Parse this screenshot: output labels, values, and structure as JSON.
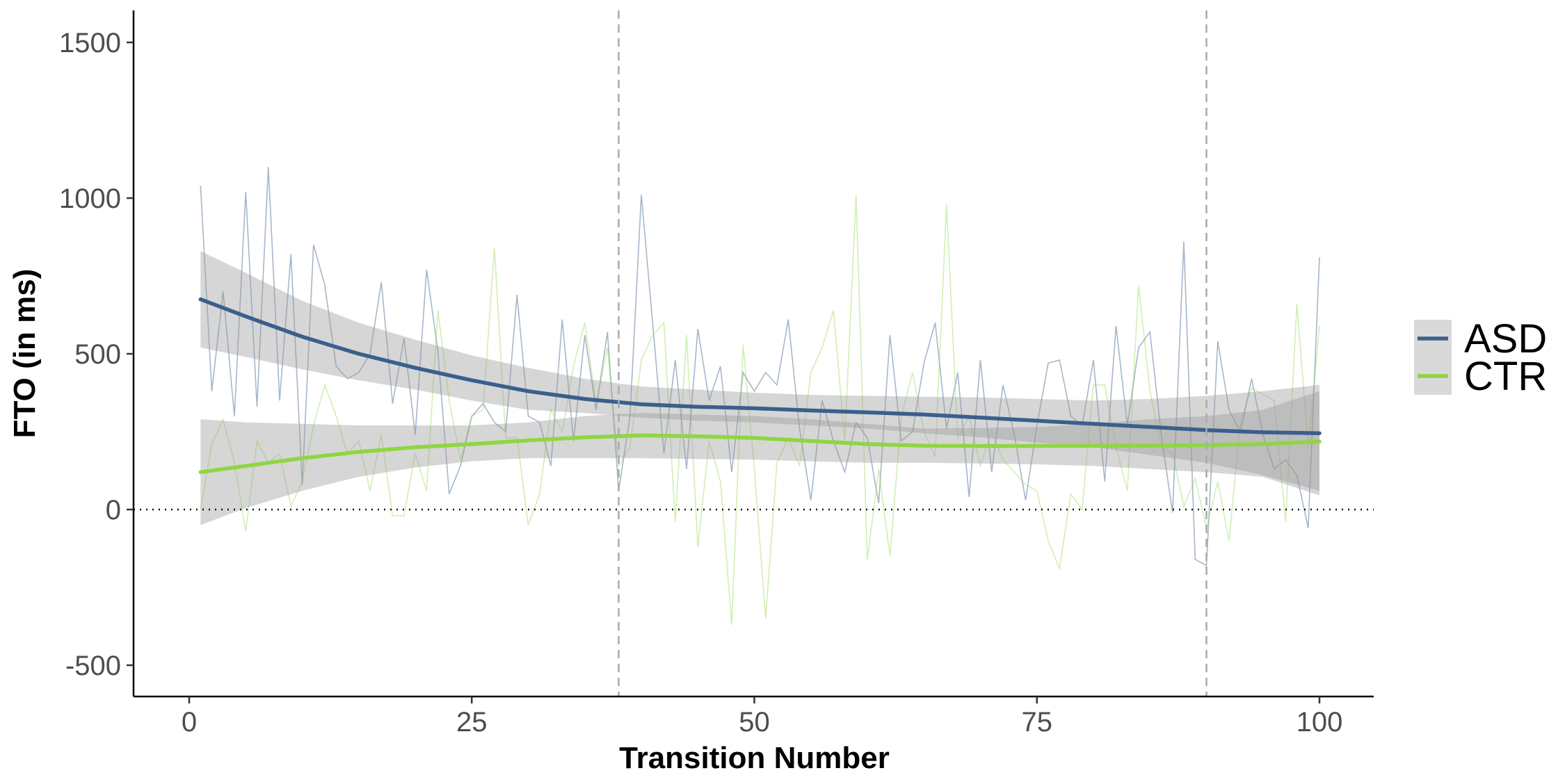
{
  "chart_data": {
    "type": "line",
    "title": "",
    "xlabel": "Transition Number",
    "ylabel": "FTO (in ms)",
    "xlim": [
      -5,
      105
    ],
    "ylim": [
      -590,
      1600
    ],
    "x_ticks": [
      0,
      25,
      50,
      75,
      100
    ],
    "y_ticks": [
      -500,
      0,
      500,
      1000,
      1500
    ],
    "x_tick_labels": [
      "0",
      "25",
      "50",
      "75",
      "100"
    ],
    "y_tick_labels": [
      "-500",
      "0",
      "500",
      "1000",
      "1500"
    ],
    "grid": false,
    "legend_position": "right",
    "reference_lines": {
      "horizontal_y": 0,
      "vertical_x": [
        38,
        90
      ]
    },
    "series": [
      {
        "name": "ASD",
        "color": "#3a5f8c",
        "raw": {
          "x": [
            1,
            2,
            3,
            4,
            5,
            6,
            7,
            8,
            9,
            10,
            11,
            12,
            13,
            14,
            15,
            16,
            17,
            18,
            19,
            20,
            21,
            22,
            23,
            24,
            25,
            26,
            27,
            28,
            29,
            30,
            31,
            32,
            33,
            34,
            35,
            36,
            37,
            38,
            39,
            40,
            41,
            42,
            43,
            44,
            45,
            46,
            47,
            48,
            49,
            50,
            51,
            52,
            53,
            54,
            55,
            56,
            57,
            58,
            59,
            60,
            61,
            62,
            63,
            64,
            65,
            66,
            67,
            68,
            69,
            70,
            71,
            72,
            73,
            74,
            75,
            76,
            77,
            78,
            79,
            80,
            81,
            82,
            83,
            84,
            85,
            86,
            87,
            88,
            89,
            90,
            91,
            92,
            93,
            94,
            95,
            96,
            97,
            98,
            99,
            100
          ],
          "y": [
            1040,
            380,
            700,
            300,
            1020,
            330,
            1100,
            350,
            820,
            80,
            850,
            720,
            460,
            420,
            440,
            500,
            730,
            340,
            550,
            240,
            770,
            510,
            50,
            140,
            300,
            340,
            280,
            250,
            690,
            300,
            280,
            140,
            610,
            220,
            560,
            320,
            570,
            60,
            300,
            1010,
            600,
            180,
            480,
            130,
            580,
            350,
            460,
            120,
            440,
            380,
            440,
            400,
            610,
            260,
            30,
            350,
            220,
            120,
            280,
            230,
            20,
            560,
            220,
            250,
            470,
            600,
            260,
            440,
            40,
            480,
            120,
            400,
            240,
            30,
            270,
            470,
            480,
            300,
            270,
            480,
            90,
            590,
            270,
            520,
            570,
            240,
            -10,
            860,
            -160,
            -180,
            540,
            320,
            250,
            420,
            240,
            130,
            160,
            110,
            -60,
            810
          ]
        },
        "smooth": {
          "x": [
            1,
            5,
            10,
            15,
            20,
            25,
            30,
            35,
            40,
            45,
            50,
            55,
            60,
            65,
            70,
            75,
            80,
            85,
            90,
            95,
            100
          ],
          "y": [
            675,
            620,
            555,
            500,
            455,
            415,
            380,
            355,
            338,
            330,
            325,
            318,
            312,
            305,
            295,
            285,
            275,
            265,
            255,
            248,
            245
          ]
        },
        "ci_lower": [
          520,
          490,
          450,
          415,
          385,
          350,
          320,
          310,
          295,
          285,
          280,
          270,
          260,
          245,
          232,
          215,
          200,
          175,
          150,
          110,
          60
        ],
        "ci_upper": [
          830,
          760,
          670,
          600,
          545,
          495,
          455,
          420,
          395,
          385,
          375,
          368,
          365,
          362,
          360,
          355,
          350,
          355,
          365,
          380,
          400
        ]
      },
      {
        "name": "CTR",
        "color": "#8fd642",
        "raw": {
          "x": [
            1,
            2,
            3,
            4,
            5,
            6,
            7,
            8,
            9,
            10,
            11,
            12,
            13,
            14,
            15,
            16,
            17,
            18,
            19,
            20,
            21,
            22,
            23,
            24,
            25,
            26,
            27,
            28,
            29,
            30,
            31,
            32,
            33,
            34,
            35,
            36,
            37,
            38,
            39,
            40,
            41,
            42,
            43,
            44,
            45,
            46,
            47,
            48,
            49,
            50,
            51,
            52,
            53,
            54,
            55,
            56,
            57,
            58,
            59,
            60,
            61,
            62,
            63,
            64,
            65,
            66,
            67,
            68,
            69,
            70,
            71,
            72,
            73,
            74,
            75,
            76,
            77,
            78,
            79,
            80,
            81,
            82,
            83,
            84,
            85,
            86,
            87,
            88,
            89,
            90,
            91,
            92,
            93,
            94,
            95,
            96,
            97,
            98,
            99,
            100
          ],
          "y": [
            0,
            210,
            290,
            150,
            -70,
            220,
            150,
            180,
            10,
            90,
            270,
            400,
            300,
            180,
            220,
            60,
            240,
            -20,
            -20,
            180,
            60,
            640,
            350,
            160,
            300,
            320,
            840,
            230,
            230,
            -50,
            50,
            320,
            250,
            460,
            600,
            340,
            520,
            140,
            200,
            480,
            560,
            600,
            -40,
            560,
            -120,
            220,
            90,
            -370,
            530,
            130,
            -350,
            150,
            230,
            140,
            440,
            520,
            640,
            220,
            1010,
            -160,
            130,
            -150,
            300,
            440,
            250,
            170,
            980,
            230,
            300,
            140,
            250,
            160,
            120,
            80,
            60,
            -100,
            -190,
            50,
            0,
            400,
            400,
            200,
            60,
            720,
            380,
            200,
            180,
            10,
            100,
            -60,
            90,
            -100,
            280,
            390,
            370,
            350,
            -40,
            660,
            200,
            590
          ]
        },
        "smooth": {
          "x": [
            1,
            5,
            10,
            15,
            20,
            25,
            30,
            35,
            40,
            45,
            50,
            55,
            60,
            65,
            70,
            75,
            80,
            85,
            90,
            95,
            100
          ],
          "y": [
            120,
            140,
            165,
            185,
            200,
            210,
            222,
            232,
            238,
            235,
            230,
            220,
            210,
            205,
            204,
            204,
            205,
            205,
            207,
            210,
            218
          ]
        },
        "ci_lower": [
          -50,
          5,
          60,
          105,
          135,
          155,
          165,
          165,
          165,
          162,
          160,
          155,
          150,
          150,
          148,
          145,
          140,
          130,
          120,
          105,
          45
        ],
        "ci_upper": [
          290,
          280,
          275,
          270,
          270,
          270,
          280,
          300,
          310,
          305,
          300,
          290,
          275,
          260,
          262,
          265,
          275,
          290,
          300,
          320,
          380
        ]
      }
    ]
  }
}
